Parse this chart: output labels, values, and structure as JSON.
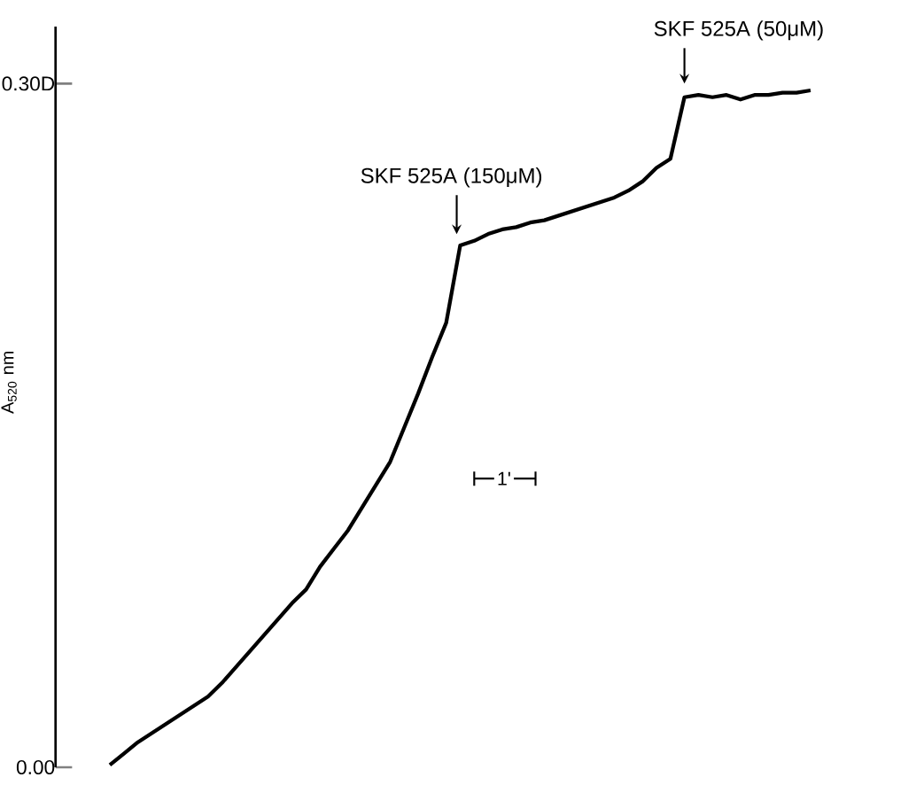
{
  "chart_data": {
    "type": "line",
    "ylabel": "A$_{520}$ nm",
    "color": "#000000",
    "categories": [
      null,
      null,
      null,
      null,
      null,
      null,
      null,
      null,
      null,
      null,
      null,
      null,
      null,
      null,
      null,
      null,
      null,
      null,
      null,
      null,
      null,
      null,
      null,
      null,
      null,
      null,
      null,
      null,
      null,
      null,
      null,
      null,
      null,
      null,
      null,
      null,
      null,
      null,
      null,
      null,
      null,
      null,
      null,
      null,
      null,
      null,
      null,
      null,
      null,
      null,
      null
    ],
    "values": [
      0.001,
      0.006,
      0.011,
      0.015,
      0.019,
      0.023,
      0.027,
      0.031,
      0.037,
      0.044,
      0.051,
      0.058,
      0.065,
      0.072,
      0.078,
      0.088,
      0.096,
      0.104,
      0.114,
      0.124,
      0.134,
      0.149,
      0.164,
      0.18,
      0.195,
      0.229,
      0.231,
      0.234,
      0.236,
      0.237,
      0.239,
      0.24,
      0.242,
      0.244,
      0.246,
      0.248,
      0.25,
      0.253,
      0.257,
      0.263,
      0.267,
      0.294,
      0.295,
      0.294,
      0.295,
      0.293,
      0.295,
      0.295,
      0.296,
      0.296,
      0.297
    ],
    "ylim": [
      0,
      0.325
    ],
    "yticks": [
      {
        "value": 0,
        "label": "0.00"
      },
      {
        "value": 0.3,
        "label": "0.30D"
      }
    ],
    "tick_labels": "y",
    "annotations": [
      "SKF 525A (150μM)",
      "SKF 525A (50μM)",
      "1'"
    ]
  }
}
